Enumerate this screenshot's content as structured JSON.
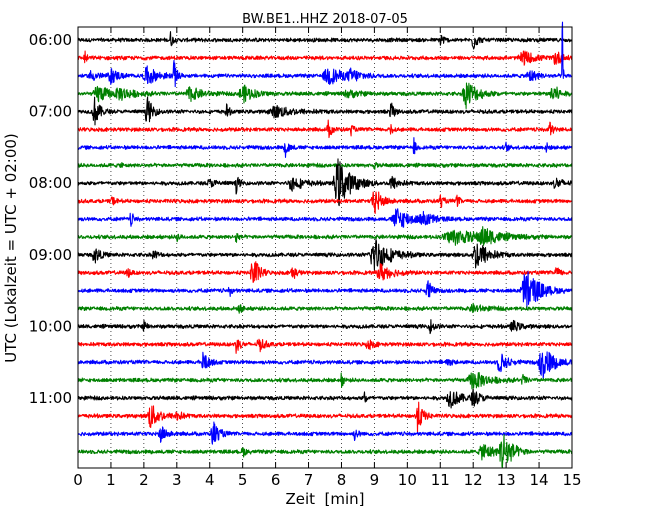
{
  "chart_data": {
    "type": "line",
    "title": "BW.BE1..HHZ 2018-07-05",
    "xlabel": "Zeit  [min]",
    "ylabel": "UTC (Lokalzeit = UTC + 02:00)",
    "xlim": [
      0,
      15
    ],
    "x_ticks": [
      0,
      1,
      2,
      3,
      4,
      5,
      6,
      7,
      8,
      9,
      10,
      11,
      12,
      13,
      14,
      15
    ],
    "y_tick_labels": [
      "06:00",
      "07:00",
      "08:00",
      "09:00",
      "10:00",
      "11:00"
    ],
    "grid": "vertical dotted",
    "trace_colors": [
      "#000000",
      "#ff0000",
      "#0000ff",
      "#008000"
    ],
    "trace_interval_minutes": 15,
    "traces": [
      {
        "start": "06:00",
        "bursts": [
          [
            2.8,
            0.5,
            0.06
          ],
          [
            11.0,
            0.5,
            0.08
          ],
          [
            12.0,
            0.6,
            0.1
          ]
        ]
      },
      {
        "start": "06:15",
        "bursts": [
          [
            0.2,
            0.5,
            0.05
          ],
          [
            13.5,
            0.4,
            0.3
          ],
          [
            14.5,
            0.4,
            0.2
          ]
        ]
      },
      {
        "start": "06:30",
        "bursts": [
          [
            0.4,
            0.3,
            0.2
          ],
          [
            1.0,
            0.4,
            0.2
          ],
          [
            2.1,
            0.5,
            0.3
          ],
          [
            2.9,
            1.0,
            0.08
          ],
          [
            7.6,
            0.5,
            0.4
          ],
          [
            8.3,
            0.3,
            0.3
          ],
          [
            13.7,
            0.4,
            0.2
          ],
          [
            14.7,
            6.0,
            0.02
          ]
        ]
      },
      {
        "start": "06:45",
        "bursts": [
          [
            0.6,
            0.5,
            0.3
          ],
          [
            1.3,
            0.3,
            0.4
          ],
          [
            3.4,
            0.4,
            0.3
          ],
          [
            5.0,
            0.5,
            0.3
          ],
          [
            8.2,
            0.2,
            0.3
          ],
          [
            11.8,
            0.8,
            0.3
          ],
          [
            14.4,
            0.8,
            0.15
          ]
        ]
      },
      {
        "start": "07:00",
        "bursts": [
          [
            0.5,
            0.8,
            0.15
          ],
          [
            2.1,
            0.8,
            0.15
          ],
          [
            4.5,
            0.4,
            0.08
          ],
          [
            6.0,
            0.3,
            0.5
          ],
          [
            9.5,
            0.5,
            0.1
          ]
        ]
      },
      {
        "start": "07:15",
        "bursts": [
          [
            7.6,
            0.5,
            0.1
          ],
          [
            8.3,
            0.4,
            0.05
          ],
          [
            9.5,
            0.5,
            0.05
          ],
          [
            14.3,
            0.5,
            0.1
          ]
        ]
      },
      {
        "start": "07:30",
        "bursts": [
          [
            6.3,
            0.5,
            0.1
          ],
          [
            10.2,
            0.5,
            0.05
          ],
          [
            13.0,
            0.3,
            0.05
          ],
          [
            14.2,
            0.4,
            0.05
          ]
        ]
      },
      {
        "start": "07:45",
        "bursts": [
          [
            1.3,
            0.2,
            0.05
          ],
          [
            9.0,
            0.2,
            0.05
          ]
        ]
      },
      {
        "start": "08:00",
        "bursts": [
          [
            4.0,
            0.2,
            0.2
          ],
          [
            4.8,
            0.5,
            0.08
          ],
          [
            6.5,
            0.4,
            0.3
          ],
          [
            7.9,
            1.4,
            0.35
          ],
          [
            9.5,
            0.4,
            0.2
          ],
          [
            14.5,
            0.3,
            0.2
          ]
        ]
      },
      {
        "start": "08:15",
        "bursts": [
          [
            1.0,
            0.3,
            0.1
          ],
          [
            9.0,
            0.8,
            0.2
          ],
          [
            11.0,
            0.4,
            0.08
          ],
          [
            11.5,
            0.3,
            0.08
          ]
        ]
      },
      {
        "start": "08:30",
        "bursts": [
          [
            1.6,
            0.4,
            0.08
          ],
          [
            9.7,
            0.6,
            0.4
          ],
          [
            10.5,
            0.3,
            0.3
          ]
        ]
      },
      {
        "start": "08:45",
        "bursts": [
          [
            3.0,
            0.2,
            0.1
          ],
          [
            4.8,
            0.5,
            0.05
          ],
          [
            11.4,
            0.4,
            0.8
          ],
          [
            12.3,
            0.4,
            0.4
          ]
        ]
      },
      {
        "start": "09:00",
        "bursts": [
          [
            0.5,
            0.5,
            0.15
          ],
          [
            2.3,
            0.3,
            0.1
          ],
          [
            9.0,
            1.0,
            0.4
          ],
          [
            12.1,
            0.9,
            0.3
          ]
        ]
      },
      {
        "start": "09:15",
        "bursts": [
          [
            1.5,
            0.3,
            0.08
          ],
          [
            5.3,
            1.2,
            0.15
          ],
          [
            6.5,
            0.5,
            0.1
          ],
          [
            9.2,
            0.5,
            0.3
          ],
          [
            14.5,
            0.4,
            0.1
          ]
        ]
      },
      {
        "start": "09:30",
        "bursts": [
          [
            4.6,
            0.3,
            0.08
          ],
          [
            10.6,
            0.8,
            0.1
          ],
          [
            13.6,
            1.3,
            0.35
          ]
        ]
      },
      {
        "start": "09:45",
        "bursts": [
          [
            4.9,
            0.3,
            0.08
          ],
          [
            12.0,
            0.2,
            0.3
          ]
        ]
      },
      {
        "start": "10:00",
        "bursts": [
          [
            2.0,
            0.3,
            0.08
          ],
          [
            10.7,
            0.4,
            0.1
          ],
          [
            13.2,
            0.3,
            0.2
          ]
        ]
      },
      {
        "start": "10:15",
        "bursts": [
          [
            4.8,
            0.5,
            0.1
          ],
          [
            5.5,
            0.4,
            0.15
          ],
          [
            8.8,
            0.3,
            0.15
          ]
        ]
      },
      {
        "start": "10:30",
        "bursts": [
          [
            3.8,
            0.6,
            0.15
          ],
          [
            11.2,
            0.3,
            0.1
          ],
          [
            12.8,
            0.6,
            0.2
          ],
          [
            14.1,
            1.0,
            0.3
          ]
        ]
      },
      {
        "start": "10:45",
        "bursts": [
          [
            8.0,
            0.4,
            0.06
          ],
          [
            12.0,
            0.5,
            0.4
          ],
          [
            13.5,
            0.3,
            0.1
          ]
        ]
      },
      {
        "start": "11:00",
        "bursts": [
          [
            8.7,
            0.4,
            0.05
          ],
          [
            11.3,
            0.5,
            0.3
          ],
          [
            12.0,
            0.4,
            0.2
          ]
        ]
      },
      {
        "start": "11:15",
        "bursts": [
          [
            2.2,
            0.7,
            0.25
          ],
          [
            3.0,
            0.3,
            0.15
          ],
          [
            10.3,
            0.9,
            0.15
          ]
        ]
      },
      {
        "start": "11:30",
        "bursts": [
          [
            2.5,
            0.5,
            0.15
          ],
          [
            4.1,
            0.8,
            0.15
          ],
          [
            8.4,
            0.3,
            0.1
          ]
        ]
      },
      {
        "start": "11:45",
        "bursts": [
          [
            5.0,
            0.3,
            0.08
          ],
          [
            12.3,
            0.5,
            0.3
          ],
          [
            12.9,
            1.2,
            0.25
          ]
        ]
      }
    ]
  }
}
